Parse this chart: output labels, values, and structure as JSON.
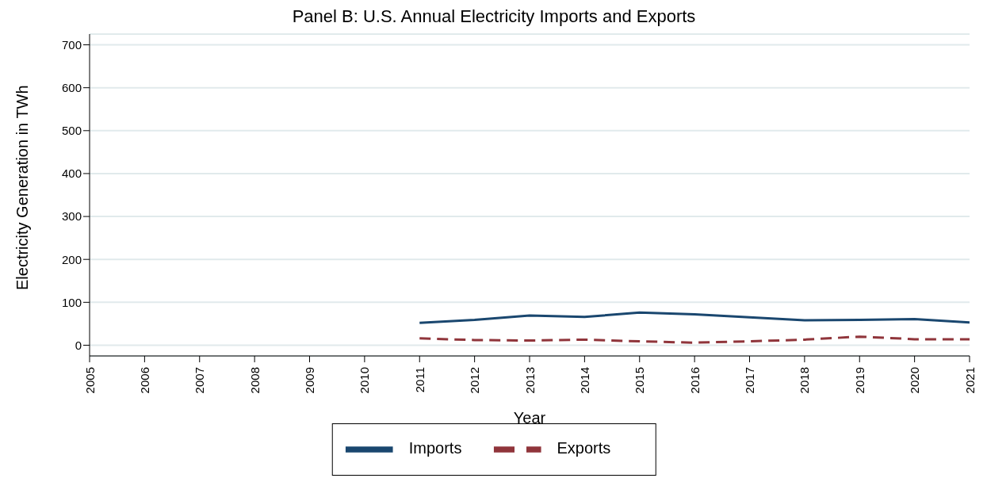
{
  "chart_data": {
    "type": "line",
    "title": "Panel B: U.S. Annual Electricity Imports and Exports",
    "xlabel": "Year",
    "ylabel": "Electricity Generation in TWh",
    "x": [
      2011,
      2012,
      2013,
      2014,
      2015,
      2016,
      2017,
      2018,
      2019,
      2020,
      2021
    ],
    "series": [
      {
        "name": "Imports",
        "color": "#1a476f",
        "values": [
          52,
          59,
          69,
          66,
          76,
          72,
          65,
          58,
          59,
          61,
          53
        ],
        "line_style": "solid"
      },
      {
        "name": "Exports",
        "color": "#90353b",
        "values": [
          16,
          12,
          11,
          13,
          9,
          6,
          9,
          13,
          20,
          14,
          14
        ],
        "line_style": "dashed"
      }
    ],
    "xlim": [
      2005,
      2021
    ],
    "xticks": [
      2005,
      2006,
      2007,
      2008,
      2009,
      2010,
      2011,
      2012,
      2013,
      2014,
      2015,
      2016,
      2017,
      2018,
      2019,
      2020,
      2021
    ],
    "ylim": [
      -25,
      725
    ],
    "yticks": [
      0,
      100,
      200,
      300,
      400,
      500,
      600,
      700
    ],
    "grid": "y",
    "legend": "bottom",
    "marker": "none"
  }
}
